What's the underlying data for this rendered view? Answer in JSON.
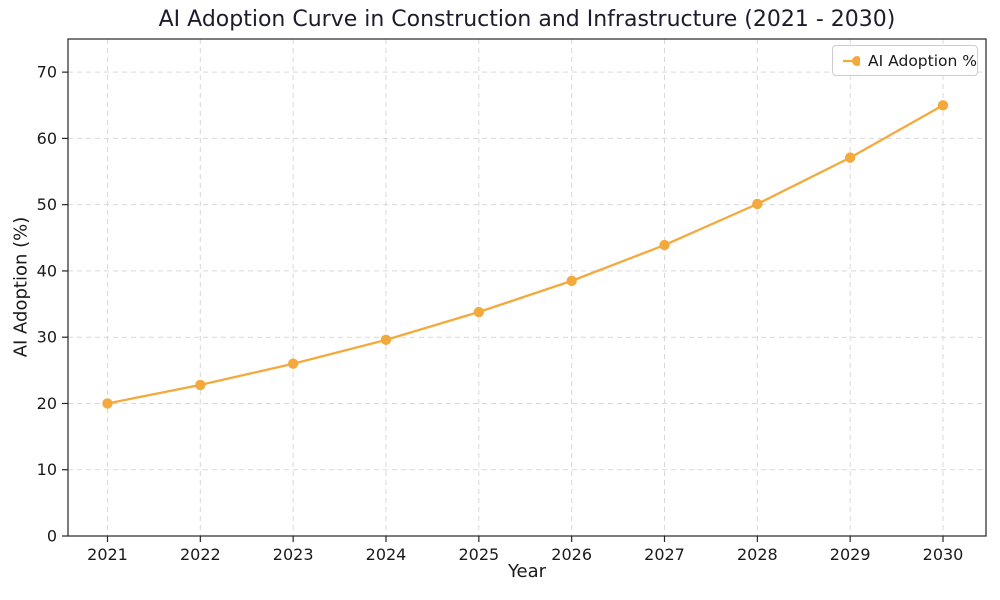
{
  "figure": {
    "background_color": "#ffffff"
  },
  "legend": {
    "label": "AI Adoption %",
    "position": "upper right"
  },
  "chart_data": {
    "type": "line",
    "title": "AI Adoption Curve in Construction and Infrastructure (2021 - 2030)",
    "xlabel": "Year",
    "ylabel": "AI Adoption (%)",
    "categories": [
      "2021",
      "2022",
      "2023",
      "2024",
      "2025",
      "2026",
      "2027",
      "2028",
      "2029",
      "2030"
    ],
    "series": [
      {
        "name": "AI Adoption %",
        "color": "#F4A93D",
        "marker": "circle",
        "values": [
          20.0,
          22.8,
          26.0,
          29.6,
          33.8,
          38.5,
          43.9,
          50.1,
          57.1,
          65.0
        ]
      }
    ],
    "ylim": [
      0,
      75
    ],
    "yticks": [
      0,
      10,
      20,
      30,
      40,
      50,
      60,
      70
    ],
    "grid": true,
    "grid_style": "dashed",
    "grid_color": "#d9d9d9",
    "spine_color": "#262626",
    "legend_position": "upper right"
  }
}
